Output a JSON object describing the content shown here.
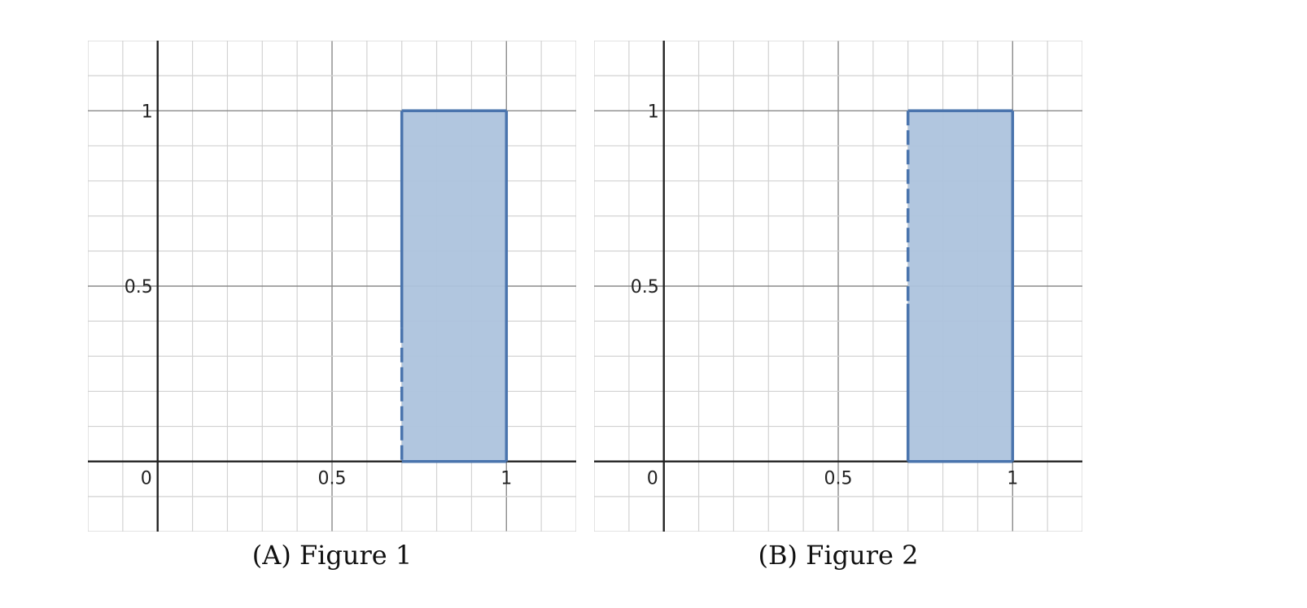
{
  "chart_data": [
    {
      "type": "area",
      "panel_label": "(A)",
      "caption": "Figure 1",
      "xlim": [
        -0.2,
        1.2
      ],
      "ylim": [
        -0.2,
        1.2
      ],
      "grid": true,
      "minor_step": 0.1,
      "major_step": 0.5,
      "x_ticks": [
        {
          "v": 0,
          "label": "0"
        },
        {
          "v": 0.5,
          "label": "0.5"
        },
        {
          "v": 1,
          "label": "1"
        }
      ],
      "y_ticks": [
        {
          "v": 0.5,
          "label": "0.5"
        },
        {
          "v": 1,
          "label": "1"
        }
      ],
      "region": {
        "x": [
          0.7,
          1.0
        ],
        "y": [
          0,
          1
        ]
      },
      "left_edge_dashed_below": 0.38,
      "colors": {
        "fill": "#adc3dd",
        "stroke": "#4a74ad"
      }
    },
    {
      "type": "area",
      "panel_label": "(B)",
      "caption": "Figure 2",
      "xlim": [
        -0.2,
        1.2
      ],
      "ylim": [
        -0.2,
        1.2
      ],
      "grid": true,
      "minor_step": 0.1,
      "major_step": 0.5,
      "x_ticks": [
        {
          "v": 0,
          "label": "0"
        },
        {
          "v": 0.5,
          "label": "0.5"
        },
        {
          "v": 1,
          "label": "1"
        }
      ],
      "y_ticks": [
        {
          "v": 0.5,
          "label": "0.5"
        },
        {
          "v": 1,
          "label": "1"
        }
      ],
      "region": {
        "x": [
          0.7,
          1.0
        ],
        "y": [
          0,
          1
        ]
      },
      "left_edge_dashed_above": 0.45,
      "colors": {
        "fill": "#adc3dd",
        "stroke": "#4a74ad"
      }
    }
  ]
}
